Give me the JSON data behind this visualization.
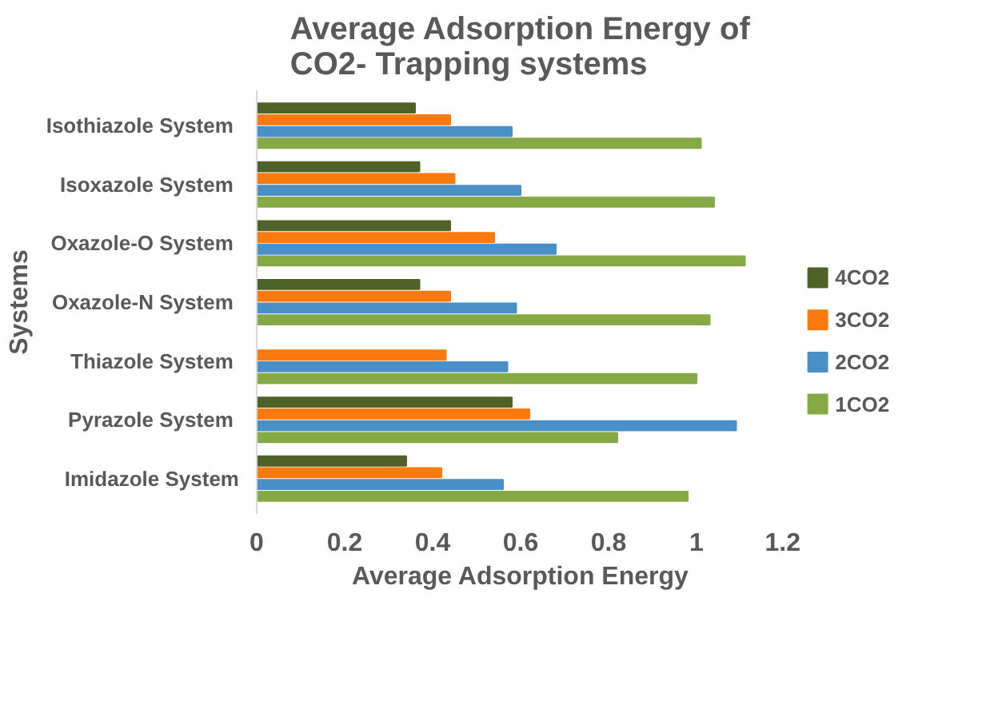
{
  "chart_data": {
    "type": "bar",
    "orientation": "horizontal",
    "title": "Average Adsorption Energy of CO2- Trapping systems",
    "xlabel": "Average Adsorption Energy",
    "ylabel": "Systems",
    "categories": [
      "Isothiazole  System",
      "Isoxazole  System",
      "Oxazole-O  System",
      "Oxazole-N  System",
      "Thiazole  System",
      "Pyrazole  System",
      "Imidazole System"
    ],
    "series": [
      {
        "name": "4CO2",
        "color": "#4f6228",
        "values": [
          0.36,
          0.37,
          0.44,
          0.37,
          null,
          0.58,
          0.34
        ]
      },
      {
        "name": "3CO2",
        "color": "#fb7a10",
        "values": [
          0.44,
          0.45,
          0.54,
          0.44,
          0.43,
          0.62,
          0.42
        ]
      },
      {
        "name": "2CO2",
        "color": "#4a90c8",
        "values": [
          0.58,
          0.6,
          0.68,
          0.59,
          0.57,
          1.09,
          0.56
        ]
      },
      {
        "name": "1CO2",
        "color": "#86a845",
        "values": [
          1.01,
          1.04,
          1.11,
          1.03,
          1.0,
          0.82,
          0.98
        ]
      }
    ],
    "xlim": [
      0,
      1.2
    ],
    "xticks": [
      0,
      0.2,
      0.4,
      0.6,
      0.8,
      1,
      1.2
    ],
    "grid": false,
    "legend": "right"
  }
}
